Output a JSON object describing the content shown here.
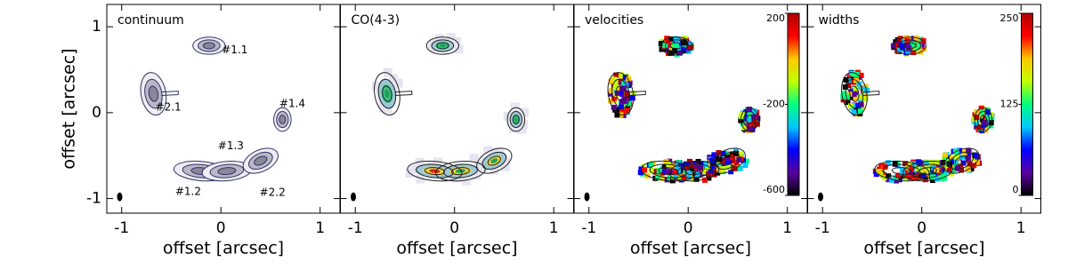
{
  "chart_data": [
    {
      "type": "map",
      "title": "continuum",
      "xlabel": "offset [arcsec]",
      "ylabel": "offset [arcsec]",
      "xlim": [
        -1.15,
        1.2
      ],
      "ylim": [
        -1.17,
        1.26
      ],
      "xticks": [
        -1,
        0,
        1
      ],
      "yticks": [
        -1,
        0,
        1
      ],
      "annotations": [
        "#1.1",
        "#2.1",
        "#1.4",
        "#1.3",
        "#1.2",
        "#2.2"
      ]
    },
    {
      "type": "map",
      "title": "CO(4-3)",
      "xlabel": "offset [arcsec]",
      "xlim": [
        -1.15,
        1.2
      ],
      "ylim": [
        -1.17,
        1.26
      ],
      "xticks": [
        -1,
        0,
        1
      ],
      "yticks": [
        -1,
        0,
        1
      ]
    },
    {
      "type": "map",
      "title": "velocities",
      "xlabel": "offset [arcsec]",
      "xlim": [
        -1.15,
        1.2
      ],
      "ylim": [
        -1.17,
        1.26
      ],
      "xticks": [
        -1,
        0,
        1
      ],
      "yticks": [
        -1,
        0,
        1
      ],
      "colorbar": {
        "lim": [
          -600,
          200
        ],
        "ticks": [
          200,
          -200,
          -600
        ],
        "colors": [
          "#000000",
          "#5a00a0",
          "#0000ff",
          "#00c8ff",
          "#00ff80",
          "#c0ff00",
          "#ffc800",
          "#ff0000",
          "#b00000"
        ]
      }
    },
    {
      "type": "map",
      "title": "widths",
      "xlabel": "offset [arcsec]",
      "xlim": [
        -1.15,
        1.2
      ],
      "ylim": [
        -1.17,
        1.26
      ],
      "xticks": [
        -1,
        0,
        1
      ],
      "yticks": [
        -1,
        0,
        1
      ],
      "colorbar": {
        "lim": [
          0,
          250
        ],
        "ticks": [
          250,
          125,
          0
        ],
        "colors": [
          "#000000",
          "#5a00a0",
          "#0000ff",
          "#00c8ff",
          "#00ff80",
          "#c0ff00",
          "#ffc800",
          "#ff0000",
          "#b00000"
        ]
      }
    }
  ]
}
